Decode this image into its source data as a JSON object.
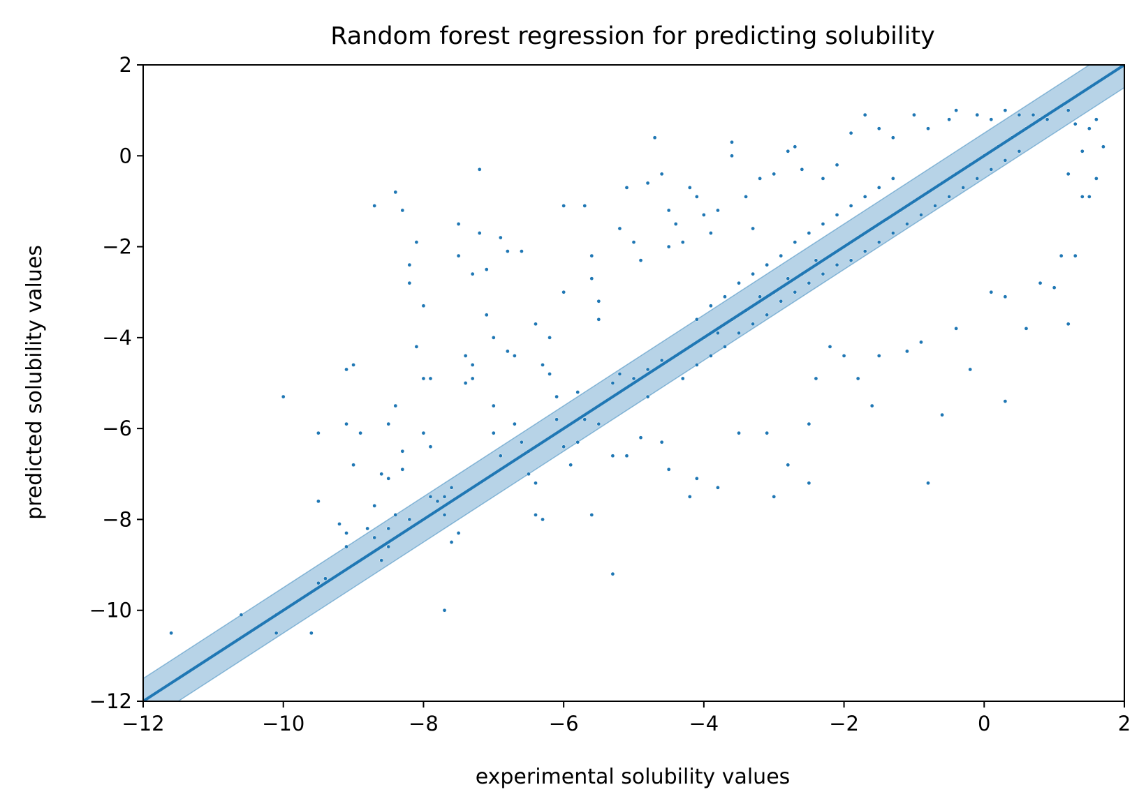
{
  "chart_data": {
    "type": "scatter",
    "title": "Random forest regression for predicting solubility",
    "xlabel": "experimental solubility values",
    "ylabel": "predicted solubility values",
    "xlim": [
      -12,
      2
    ],
    "ylim": [
      -12,
      2
    ],
    "x_ticks": [
      -12,
      -10,
      -8,
      -6,
      -4,
      -2,
      0,
      2
    ],
    "y_ticks": [
      -12,
      -10,
      -8,
      -6,
      -4,
      -2,
      0,
      2
    ],
    "x_tick_labels": [
      "−12",
      "−10",
      "−8",
      "−6",
      "−4",
      "−2",
      "0",
      "2"
    ],
    "y_tick_labels": [
      "−12",
      "−10",
      "−8",
      "−6",
      "−4",
      "−2",
      "0",
      "2"
    ],
    "grid": false,
    "legend": "none",
    "fit_line": {
      "slope": 1.0,
      "intercept": 0.0,
      "band_halfwidth": 0.5
    },
    "colors": {
      "points": "#1f77b4",
      "line": "#1f77b4",
      "band": "#1f77b4"
    },
    "points": [
      [
        -11.6,
        -10.5
      ],
      [
        -10.6,
        -10.1
      ],
      [
        -10.1,
        -10.5
      ],
      [
        -10.1,
        -10.1
      ],
      [
        -9.6,
        -10.5
      ],
      [
        -10.0,
        -5.3
      ],
      [
        -9.5,
        -7.6
      ],
      [
        -9.5,
        -6.1
      ],
      [
        -9.4,
        -9.3
      ],
      [
        -9.5,
        -9.4
      ],
      [
        -9.2,
        -8.1
      ],
      [
        -9.1,
        -8.6
      ],
      [
        -9.1,
        -8.3
      ],
      [
        -9.1,
        -4.7
      ],
      [
        -9.0,
        -4.6
      ],
      [
        -9.0,
        -6.8
      ],
      [
        -9.1,
        -5.9
      ],
      [
        -8.9,
        -6.1
      ],
      [
        -8.8,
        -8.2
      ],
      [
        -8.7,
        -8.4
      ],
      [
        -8.7,
        -7.7
      ],
      [
        -8.6,
        -7.0
      ],
      [
        -8.6,
        -8.9
      ],
      [
        -8.5,
        -8.2
      ],
      [
        -8.5,
        -8.6
      ],
      [
        -8.4,
        -7.9
      ],
      [
        -8.4,
        -5.5
      ],
      [
        -8.3,
        -6.5
      ],
      [
        -8.3,
        -6.9
      ],
      [
        -8.2,
        -8.0
      ],
      [
        -8.5,
        -7.1
      ],
      [
        -8.5,
        -5.9
      ],
      [
        -8.7,
        -1.1
      ],
      [
        -8.4,
        -0.8
      ],
      [
        -8.3,
        -1.2
      ],
      [
        -8.1,
        -1.9
      ],
      [
        -8.2,
        -2.4
      ],
      [
        -8.2,
        -2.8
      ],
      [
        -8.1,
        -4.2
      ],
      [
        -8.0,
        -3.3
      ],
      [
        -8.0,
        -4.9
      ],
      [
        -7.9,
        -4.9
      ],
      [
        -8.0,
        -6.1
      ],
      [
        -7.9,
        -6.4
      ],
      [
        -7.9,
        -7.5
      ],
      [
        -7.8,
        -7.6
      ],
      [
        -7.7,
        -7.5
      ],
      [
        -7.7,
        -7.9
      ],
      [
        -7.7,
        -10.0
      ],
      [
        -7.6,
        -7.3
      ],
      [
        -7.6,
        -8.5
      ],
      [
        -7.5,
        -8.3
      ],
      [
        -7.5,
        -2.2
      ],
      [
        -7.5,
        -1.5
      ],
      [
        -7.4,
        -5.0
      ],
      [
        -7.4,
        -4.4
      ],
      [
        -7.3,
        -4.6
      ],
      [
        -7.3,
        -4.9
      ],
      [
        -7.2,
        -0.3
      ],
      [
        -7.2,
        -1.7
      ],
      [
        -7.3,
        -2.6
      ],
      [
        -7.1,
        -2.5
      ],
      [
        -7.1,
        -3.5
      ],
      [
        -7.0,
        -4.0
      ],
      [
        -7.0,
        -5.5
      ],
      [
        -7.0,
        -6.1
      ],
      [
        -6.9,
        -6.6
      ],
      [
        -6.8,
        -2.1
      ],
      [
        -6.6,
        -2.1
      ],
      [
        -6.9,
        -1.8
      ],
      [
        -6.8,
        -4.3
      ],
      [
        -6.7,
        -4.4
      ],
      [
        -6.7,
        -5.9
      ],
      [
        -6.6,
        -6.3
      ],
      [
        -6.5,
        -6.5
      ],
      [
        -6.5,
        -7.0
      ],
      [
        -6.4,
        -7.2
      ],
      [
        -6.4,
        -7.9
      ],
      [
        -6.3,
        -8.0
      ],
      [
        -6.4,
        -3.7
      ],
      [
        -6.3,
        -4.6
      ],
      [
        -6.2,
        -4.0
      ],
      [
        -6.2,
        -4.8
      ],
      [
        -6.1,
        -5.3
      ],
      [
        -6.1,
        -5.8
      ],
      [
        -6.0,
        -1.1
      ],
      [
        -6.0,
        -3.0
      ],
      [
        -6.0,
        -6.4
      ],
      [
        -5.9,
        -6.8
      ],
      [
        -5.8,
        -6.3
      ],
      [
        -5.7,
        -1.1
      ],
      [
        -5.6,
        -2.2
      ],
      [
        -5.6,
        -2.7
      ],
      [
        -5.5,
        -3.2
      ],
      [
        -5.5,
        -3.6
      ],
      [
        -5.6,
        -7.9
      ],
      [
        -5.3,
        -9.2
      ],
      [
        -5.2,
        -1.6
      ],
      [
        -5.1,
        -0.7
      ],
      [
        -5.0,
        -1.9
      ],
      [
        -4.9,
        -2.3
      ],
      [
        -4.8,
        -0.6
      ],
      [
        -4.7,
        0.4
      ],
      [
        -4.6,
        -0.4
      ],
      [
        -4.5,
        -1.2
      ],
      [
        -4.5,
        -2.0
      ],
      [
        -4.4,
        -1.5
      ],
      [
        -4.3,
        -1.9
      ],
      [
        -4.2,
        -0.7
      ],
      [
        -4.1,
        -0.9
      ],
      [
        -4.0,
        -1.3
      ],
      [
        -3.9,
        -1.7
      ],
      [
        -3.8,
        -1.2
      ],
      [
        -3.6,
        0.3
      ],
      [
        -3.6,
        0.0
      ],
      [
        -3.4,
        -0.9
      ],
      [
        -3.3,
        -1.6
      ],
      [
        -3.2,
        -0.5
      ],
      [
        -3.0,
        -0.4
      ],
      [
        -2.8,
        0.1
      ],
      [
        -2.7,
        0.2
      ],
      [
        -2.6,
        -0.3
      ],
      [
        -2.3,
        -0.5
      ],
      [
        -2.1,
        -0.2
      ],
      [
        -1.9,
        0.5
      ],
      [
        -1.7,
        0.9
      ],
      [
        -1.5,
        0.6
      ],
      [
        -1.3,
        0.4
      ],
      [
        -1.0,
        0.9
      ],
      [
        -0.8,
        0.6
      ],
      [
        -0.5,
        0.8
      ],
      [
        -0.4,
        1.0
      ],
      [
        -0.1,
        0.9
      ],
      [
        0.1,
        0.8
      ],
      [
        0.3,
        1.0
      ],
      [
        0.5,
        0.9
      ],
      [
        0.7,
        0.9
      ],
      [
        0.9,
        0.8
      ],
      [
        1.1,
        1.1
      ],
      [
        1.2,
        1.0
      ],
      [
        1.3,
        0.7
      ],
      [
        1.5,
        0.6
      ],
      [
        1.6,
        0.8
      ],
      [
        1.7,
        0.2
      ],
      [
        1.4,
        0.1
      ],
      [
        1.2,
        -0.4
      ],
      [
        1.4,
        -0.9
      ],
      [
        1.6,
        -0.5
      ],
      [
        1.5,
        -0.9
      ],
      [
        1.3,
        -2.2
      ],
      [
        1.1,
        -2.2
      ],
      [
        1.2,
        -3.7
      ],
      [
        1.0,
        -2.9
      ],
      [
        0.8,
        -2.8
      ],
      [
        0.6,
        -3.8
      ],
      [
        0.3,
        -3.1
      ],
      [
        0.1,
        -3.0
      ],
      [
        -0.2,
        -4.7
      ],
      [
        0.3,
        -5.4
      ],
      [
        -0.8,
        -7.2
      ],
      [
        -0.6,
        -5.7
      ],
      [
        -0.4,
        -3.8
      ],
      [
        -0.9,
        -4.1
      ],
      [
        -1.1,
        -4.3
      ],
      [
        -1.5,
        -4.4
      ],
      [
        -1.6,
        -5.5
      ],
      [
        -1.8,
        -4.9
      ],
      [
        -2.0,
        -4.4
      ],
      [
        -2.2,
        -4.2
      ],
      [
        -2.4,
        -4.9
      ],
      [
        -2.5,
        -5.9
      ],
      [
        -2.5,
        -7.2
      ],
      [
        -2.8,
        -6.8
      ],
      [
        -3.0,
        -7.5
      ],
      [
        -3.1,
        -6.1
      ],
      [
        -3.5,
        -6.1
      ],
      [
        -3.8,
        -7.3
      ],
      [
        -4.1,
        -7.1
      ],
      [
        -4.2,
        -7.5
      ],
      [
        -4.5,
        -6.9
      ],
      [
        -4.6,
        -6.3
      ],
      [
        -4.8,
        -5.3
      ],
      [
        -4.9,
        -6.2
      ],
      [
        -5.1,
        -6.6
      ],
      [
        -5.3,
        -6.6
      ],
      [
        -5.5,
        -5.9
      ],
      [
        -5.7,
        -5.8
      ],
      [
        -5.8,
        -5.2
      ],
      [
        -5.3,
        -5.0
      ],
      [
        -5.2,
        -4.8
      ],
      [
        -5.0,
        -4.9
      ],
      [
        -4.8,
        -4.7
      ],
      [
        -4.6,
        -4.5
      ],
      [
        -4.4,
        -4.4
      ],
      [
        -4.2,
        -4.2
      ],
      [
        -4.0,
        -4.0
      ],
      [
        -3.8,
        -3.9
      ],
      [
        -3.6,
        -3.6
      ],
      [
        -3.4,
        -3.4
      ],
      [
        -3.2,
        -3.1
      ],
      [
        -3.0,
        -3.0
      ],
      [
        -2.8,
        -2.7
      ],
      [
        -2.6,
        -2.6
      ],
      [
        -2.4,
        -2.3
      ],
      [
        -2.2,
        -2.2
      ],
      [
        -2.0,
        -2.0
      ],
      [
        -1.8,
        -1.8
      ],
      [
        -1.6,
        -1.6
      ],
      [
        -1.4,
        -1.4
      ],
      [
        -1.2,
        -1.2
      ],
      [
        -1.0,
        -1.0
      ],
      [
        -0.8,
        -0.8
      ],
      [
        -0.6,
        -0.6
      ],
      [
        -0.4,
        -0.4
      ],
      [
        -0.2,
        -0.2
      ],
      [
        0.0,
        0.0
      ],
      [
        0.2,
        0.2
      ],
      [
        0.4,
        0.4
      ],
      [
        0.6,
        0.6
      ],
      [
        0.8,
        0.8
      ],
      [
        -4.1,
        -3.6
      ],
      [
        -3.9,
        -3.3
      ],
      [
        -3.7,
        -3.1
      ],
      [
        -3.5,
        -2.8
      ],
      [
        -3.3,
        -2.6
      ],
      [
        -3.1,
        -2.4
      ],
      [
        -2.9,
        -2.2
      ],
      [
        -2.7,
        -1.9
      ],
      [
        -2.5,
        -1.7
      ],
      [
        -2.3,
        -1.5
      ],
      [
        -2.1,
        -1.3
      ],
      [
        -1.9,
        -1.1
      ],
      [
        -1.7,
        -0.9
      ],
      [
        -1.5,
        -0.7
      ],
      [
        -1.3,
        -0.5
      ],
      [
        -4.3,
        -4.9
      ],
      [
        -4.1,
        -4.6
      ],
      [
        -3.9,
        -4.4
      ],
      [
        -3.7,
        -4.2
      ],
      [
        -3.5,
        -3.9
      ],
      [
        -3.3,
        -3.7
      ],
      [
        -3.1,
        -3.5
      ],
      [
        -2.9,
        -3.2
      ],
      [
        -2.7,
        -3.0
      ],
      [
        -2.5,
        -2.8
      ],
      [
        -2.3,
        -2.6
      ],
      [
        -2.1,
        -2.4
      ],
      [
        -1.9,
        -2.3
      ],
      [
        -1.7,
        -2.1
      ],
      [
        -1.5,
        -1.9
      ],
      [
        -1.3,
        -1.7
      ],
      [
        -1.1,
        -1.5
      ],
      [
        -0.9,
        -1.3
      ],
      [
        -0.7,
        -1.1
      ],
      [
        -0.5,
        -0.9
      ],
      [
        -0.3,
        -0.7
      ],
      [
        -0.1,
        -0.5
      ],
      [
        0.1,
        -0.3
      ],
      [
        0.3,
        -0.1
      ],
      [
        0.5,
        0.1
      ]
    ]
  }
}
